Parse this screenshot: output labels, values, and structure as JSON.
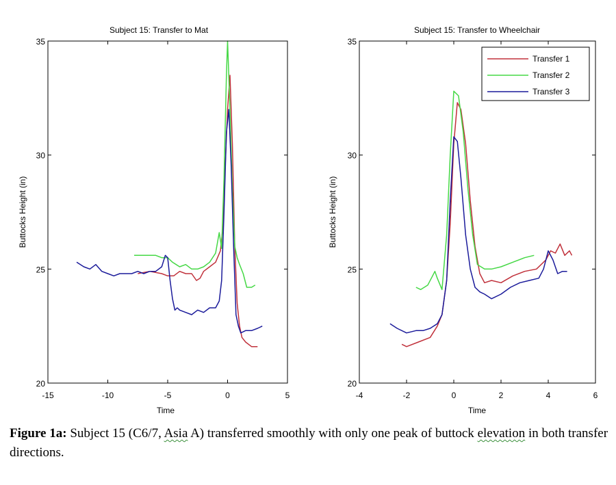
{
  "colors": {
    "transfer1": "#c0303a",
    "transfer2": "#45d845",
    "transfer3": "#1a1a9a"
  },
  "chart_data": [
    {
      "type": "line",
      "title": "Subject 15: Transfer to Mat",
      "xlabel": "Time",
      "ylabel": "Buttocks Height (in)",
      "xlim": [
        -15,
        5
      ],
      "ylim": [
        20,
        35
      ],
      "xticks": [
        -15,
        -10,
        -5,
        0,
        5
      ],
      "yticks": [
        20,
        25,
        30,
        35
      ],
      "series": [
        {
          "name": "Transfer 1",
          "color": "transfer1",
          "x": [
            -7.5,
            -6.5,
            -5.5,
            -5,
            -4.5,
            -4,
            -3.5,
            -3,
            -2.6,
            -2.3,
            -2,
            -1.5,
            -1,
            -0.6,
            -0.4,
            -0.2,
            0,
            0.2,
            0.4,
            0.6,
            0.8,
            1.0,
            1.2,
            1.5,
            2,
            2.5
          ],
          "y": [
            24.8,
            24.9,
            24.8,
            24.7,
            24.7,
            24.9,
            24.8,
            24.8,
            24.5,
            24.6,
            24.9,
            25.1,
            25.3,
            25.8,
            26.8,
            29.5,
            32.0,
            33.5,
            30.5,
            26.0,
            23.5,
            22.5,
            22.0,
            21.8,
            21.6,
            21.6
          ]
        },
        {
          "name": "Transfer 2",
          "color": "transfer2",
          "x": [
            -7.8,
            -7,
            -6,
            -5.5,
            -5,
            -4.6,
            -4,
            -3.5,
            -3,
            -2.5,
            -2,
            -1.5,
            -1,
            -0.7,
            -0.5,
            -0.3,
            -0.1,
            0,
            0.2,
            0.4,
            0.6,
            0.8,
            1.0,
            1.3,
            1.6,
            2.0,
            2.3
          ],
          "y": [
            25.6,
            25.6,
            25.6,
            25.5,
            25.5,
            25.3,
            25.1,
            25.2,
            25.0,
            25.0,
            25.1,
            25.3,
            25.7,
            26.6,
            25.9,
            29.0,
            33.5,
            35.0,
            32.0,
            28.5,
            26.0,
            25.5,
            25.2,
            24.8,
            24.2,
            24.2,
            24.3
          ]
        },
        {
          "name": "Transfer 3",
          "color": "transfer3",
          "x": [
            -12.6,
            -12,
            -11.5,
            -11,
            -10.5,
            -10,
            -9.5,
            -9,
            -8.5,
            -8,
            -7.5,
            -7,
            -6.5,
            -6,
            -5.5,
            -5.2,
            -5,
            -4.8,
            -4.6,
            -4.4,
            -4.2,
            -4,
            -3.5,
            -3,
            -2.5,
            -2,
            -1.5,
            -1,
            -0.7,
            -0.5,
            -0.3,
            -0.1,
            0.1,
            0.3,
            0.5,
            0.7,
            0.9,
            1.1,
            1.5,
            2,
            2.5,
            2.9
          ],
          "y": [
            25.3,
            25.1,
            25.0,
            25.2,
            24.9,
            24.8,
            24.7,
            24.8,
            24.8,
            24.8,
            24.9,
            24.8,
            24.9,
            24.9,
            25.1,
            25.6,
            25.5,
            24.5,
            23.7,
            23.2,
            23.3,
            23.2,
            23.1,
            23.0,
            23.2,
            23.1,
            23.3,
            23.3,
            23.6,
            24.5,
            27.5,
            31.0,
            32.0,
            29.5,
            26.0,
            23.0,
            22.5,
            22.2,
            22.3,
            22.3,
            22.4,
            22.5
          ]
        }
      ]
    },
    {
      "type": "line",
      "title": "Subject 15: Transfer to Wheelchair",
      "xlabel": "Time",
      "ylabel": "Buttocks Height (in)",
      "xlim": [
        -4,
        6
      ],
      "ylim": [
        20,
        35
      ],
      "xticks": [
        -4,
        -2,
        0,
        2,
        4,
        6
      ],
      "yticks": [
        20,
        25,
        30,
        35
      ],
      "legend": [
        "Transfer 1",
        "Transfer 2",
        "Transfer 3"
      ],
      "legend_position": "top-right",
      "series": [
        {
          "name": "Transfer 1",
          "color": "transfer1",
          "x": [
            -2.2,
            -2,
            -1.5,
            -1,
            -0.7,
            -0.5,
            -0.3,
            -0.15,
            0,
            0.15,
            0.3,
            0.5,
            0.7,
            0.9,
            1.1,
            1.3,
            1.6,
            2,
            2.5,
            3,
            3.5,
            3.9,
            4.1,
            4.3,
            4.5,
            4.7,
            4.9,
            5.0
          ],
          "y": [
            21.7,
            21.6,
            21.8,
            22.0,
            22.5,
            23.0,
            24.5,
            27.0,
            30.5,
            32.3,
            32.0,
            30.5,
            28.0,
            26.0,
            24.8,
            24.4,
            24.5,
            24.4,
            24.7,
            24.9,
            25.0,
            25.4,
            25.8,
            25.7,
            26.1,
            25.6,
            25.8,
            25.6
          ]
        },
        {
          "name": "Transfer 2",
          "color": "transfer2",
          "x": [
            -1.6,
            -1.4,
            -1.1,
            -0.9,
            -0.8,
            -0.7,
            -0.5,
            -0.3,
            -0.15,
            0,
            0.2,
            0.4,
            0.6,
            0.8,
            1.0,
            1.3,
            1.6,
            2,
            2.5,
            3,
            3.4
          ],
          "y": [
            24.2,
            24.1,
            24.3,
            24.7,
            24.9,
            24.6,
            24.1,
            26.5,
            30.0,
            32.8,
            32.6,
            31.0,
            28.5,
            26.5,
            25.2,
            25.0,
            25.0,
            25.1,
            25.3,
            25.5,
            25.6
          ]
        },
        {
          "name": "Transfer 3",
          "color": "transfer3",
          "x": [
            -2.7,
            -2.4,
            -2,
            -1.6,
            -1.3,
            -1,
            -0.7,
            -0.5,
            -0.3,
            -0.15,
            0,
            0.15,
            0.3,
            0.5,
            0.7,
            0.9,
            1.1,
            1.3,
            1.6,
            2,
            2.4,
            2.8,
            3.2,
            3.6,
            3.8,
            4.0,
            4.2,
            4.4,
            4.6,
            4.8
          ],
          "y": [
            22.6,
            22.4,
            22.2,
            22.3,
            22.3,
            22.4,
            22.6,
            23.0,
            24.5,
            28.0,
            30.8,
            30.6,
            29.0,
            26.5,
            25.0,
            24.2,
            24.0,
            23.9,
            23.7,
            23.9,
            24.2,
            24.4,
            24.5,
            24.6,
            25.0,
            25.8,
            25.4,
            24.8,
            24.9,
            24.9
          ]
        }
      ]
    }
  ],
  "caption": {
    "label": "Figure 1a:",
    "text_before": "Subject 15 (C6/7, ",
    "flagged_1": "Asia",
    "text_middle": " A) transferred smoothly with only one peak of buttock",
    "flagged_2": "elevation",
    "text_after": " in both transfer directions."
  }
}
